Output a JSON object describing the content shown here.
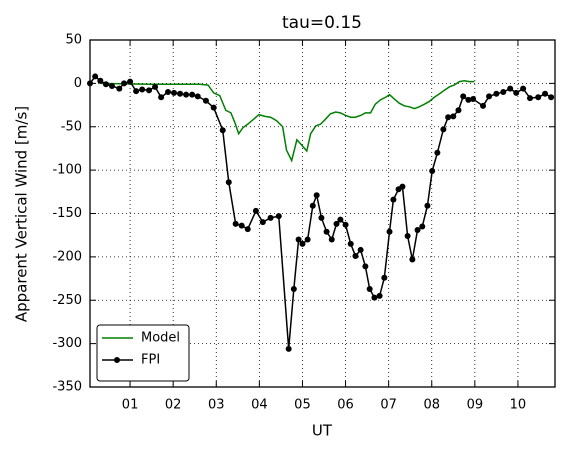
{
  "chart_data": {
    "type": "line",
    "title": "tau=0.15",
    "xlabel": "UT",
    "ylabel": "Apparent Vertical Wind [m/s]",
    "xlim": [
      0.07,
      10.86
    ],
    "ylim": [
      -350,
      50
    ],
    "xticks": [
      {
        "value": 1,
        "label": "01"
      },
      {
        "value": 2,
        "label": "02"
      },
      {
        "value": 3,
        "label": "03"
      },
      {
        "value": 4,
        "label": "04"
      },
      {
        "value": 5,
        "label": "05"
      },
      {
        "value": 6,
        "label": "06"
      },
      {
        "value": 7,
        "label": "07"
      },
      {
        "value": 8,
        "label": "08"
      },
      {
        "value": 9,
        "label": "09"
      },
      {
        "value": 10,
        "label": "10"
      }
    ],
    "yticks": [
      -350,
      -300,
      -250,
      -200,
      -150,
      -100,
      -50,
      0,
      50
    ],
    "grid": true,
    "legend": "lower left",
    "series": [
      {
        "name": "Model",
        "color": "#008000",
        "marker": false,
        "x": [
          0.31,
          1.46,
          2.62,
          2.81,
          2.94,
          3.08,
          3.22,
          3.34,
          3.43,
          3.52,
          3.62,
          3.73,
          3.85,
          3.99,
          4.13,
          4.26,
          4.4,
          4.54,
          4.63,
          4.75,
          4.87,
          4.98,
          5.1,
          5.19,
          5.31,
          5.42,
          5.54,
          5.65,
          5.77,
          5.88,
          6.0,
          6.12,
          6.23,
          6.35,
          6.46,
          6.58,
          6.69,
          6.81,
          6.93,
          7.02,
          7.13,
          7.25,
          7.37,
          7.48,
          7.6,
          7.71,
          7.83,
          7.94,
          8.06,
          8.18,
          8.29,
          8.41,
          8.52,
          8.64,
          8.76,
          8.87,
          8.99
        ],
        "values": [
          0,
          -1,
          -1,
          -2,
          -11,
          -14,
          -31,
          -34,
          -45,
          -58,
          -51,
          -47,
          -42,
          -36,
          -38,
          -39,
          -43,
          -50,
          -77,
          -89,
          -65,
          -71,
          -78,
          -58,
          -49,
          -47,
          -41,
          -35,
          -33,
          -34,
          -37,
          -39,
          -39,
          -37,
          -34,
          -34,
          -24,
          -19,
          -16,
          -13,
          -18,
          -23,
          -26,
          -27,
          -29,
          -27,
          -24,
          -21,
          -16,
          -12,
          -8,
          -4,
          -2,
          2,
          3,
          2,
          2
        ]
      },
      {
        "name": "FPI",
        "color": "#000000",
        "marker": true,
        "x": [
          0.07,
          0.19,
          0.31,
          0.44,
          0.58,
          0.75,
          0.86,
          1.0,
          1.14,
          1.28,
          1.44,
          1.58,
          1.72,
          1.88,
          2.02,
          2.16,
          2.3,
          2.44,
          2.57,
          2.76,
          2.94,
          3.15,
          3.29,
          3.45,
          3.59,
          3.73,
          3.92,
          4.08,
          4.26,
          4.45,
          4.68,
          4.8,
          4.91,
          5.0,
          5.12,
          5.24,
          5.33,
          5.44,
          5.56,
          5.68,
          5.79,
          5.88,
          6.0,
          6.12,
          6.23,
          6.35,
          6.46,
          6.56,
          6.67,
          6.79,
          6.9,
          7.02,
          7.11,
          7.23,
          7.32,
          7.44,
          7.55,
          7.67,
          7.78,
          7.9,
          8.01,
          8.13,
          8.27,
          8.38,
          8.5,
          8.62,
          8.73,
          8.85,
          8.96,
          9.19,
          9.33,
          9.5,
          9.66,
          9.82,
          9.96,
          10.12,
          10.28,
          10.47,
          10.63,
          10.77
        ],
        "values": [
          0,
          8,
          3,
          -1,
          -3,
          -6,
          0,
          2,
          -9,
          -7,
          -8,
          -4,
          -16,
          -10,
          -11,
          -12,
          -13,
          -13,
          -15,
          -20,
          -28,
          -54,
          -114,
          -162,
          -164,
          -168,
          -147,
          -160,
          -155,
          -153,
          -306,
          -237,
          -180,
          -185,
          -180,
          -141,
          -129,
          -155,
          -171,
          -180,
          -162,
          -157,
          -163,
          -185,
          -199,
          -192,
          -211,
          -237,
          -247,
          -245,
          -224,
          -171,
          -134,
          -122,
          -119,
          -176,
          -203,
          -169,
          -165,
          -141,
          -101,
          -80,
          -53,
          -39,
          -38,
          -31,
          -15,
          -19,
          -18,
          -26,
          -15,
          -12,
          -10,
          -6,
          -11,
          -6,
          -17,
          -16,
          -12,
          -16
        ]
      }
    ]
  }
}
